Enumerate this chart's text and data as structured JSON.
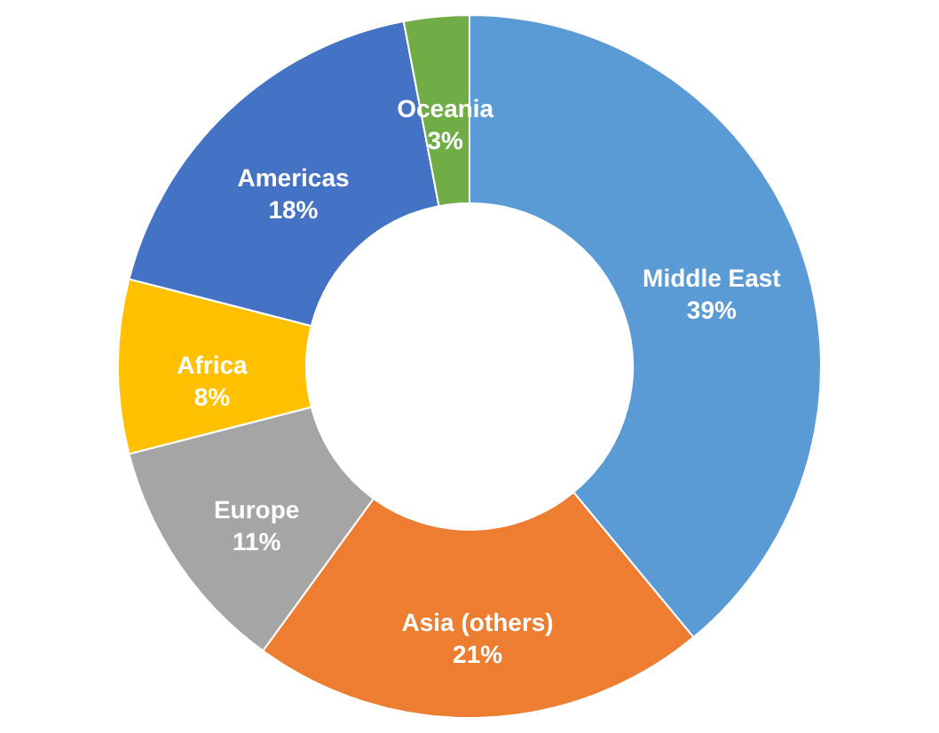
{
  "chart_data": {
    "type": "donut",
    "categories": [
      "Middle East",
      "Asia (others)",
      "Europe",
      "Africa",
      "Americas",
      "Oceania"
    ],
    "values": [
      39,
      21,
      11,
      8,
      18,
      3
    ],
    "value_labels": [
      "39%",
      "21%",
      "11%",
      "8%",
      "18%",
      "3%"
    ],
    "colors": [
      "#5b9bd5",
      "#ed7d31",
      "#a5a5a5",
      "#ffc000",
      "#4472c4",
      "#70ad47"
    ],
    "legend": false
  }
}
